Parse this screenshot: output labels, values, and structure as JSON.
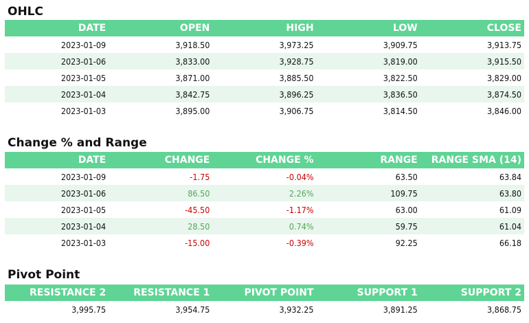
{
  "ohlc": {
    "title": "OHLC",
    "headers": [
      "DATE",
      "OPEN",
      "HIGH",
      "LOW",
      "CLOSE"
    ],
    "rows": [
      [
        "2023-01-09",
        "3,918.50",
        "3,973.25",
        "3,909.75",
        "3,913.75"
      ],
      [
        "2023-01-06",
        "3,833.00",
        "3,928.75",
        "3,819.00",
        "3,915.50"
      ],
      [
        "2023-01-05",
        "3,871.00",
        "3,885.50",
        "3,822.50",
        "3,829.00"
      ],
      [
        "2023-01-04",
        "3,842.75",
        "3,896.25",
        "3,836.50",
        "3,874.50"
      ],
      [
        "2023-01-03",
        "3,895.00",
        "3,906.75",
        "3,814.50",
        "3,846.00"
      ]
    ]
  },
  "change": {
    "title": "Change % and Range",
    "headers": [
      "DATE",
      "CHANGE",
      "CHANGE %",
      "RANGE",
      "RANGE SMA (14)"
    ],
    "rows": [
      [
        "2023-01-09",
        "-1.75",
        "-0.04%",
        "63.50",
        "63.84"
      ],
      [
        "2023-01-06",
        "86.50",
        "2.26%",
        "109.75",
        "63.80"
      ],
      [
        "2023-01-05",
        "-45.50",
        "-1.17%",
        "63.00",
        "61.09"
      ],
      [
        "2023-01-04",
        "28.50",
        "0.74%",
        "59.75",
        "61.04"
      ],
      [
        "2023-01-03",
        "-15.00",
        "-0.39%",
        "92.25",
        "66.18"
      ]
    ],
    "colors": {
      "negative": "#cc0000",
      "positive": "#58a558"
    }
  },
  "pivot": {
    "title": "Pivot Point",
    "headers": [
      "RESISTANCE 2",
      "RESISTANCE 1",
      "PIVOT POINT",
      "SUPPORT 1",
      "SUPPORT 2"
    ],
    "values": [
      "3,995.75",
      "3,954.75",
      "3,932.25",
      "3,891.25",
      "3,868.75"
    ]
  },
  "colors": {
    "header_bg": "#5fd495",
    "alt_row_bg": "#e8f6ee"
  }
}
